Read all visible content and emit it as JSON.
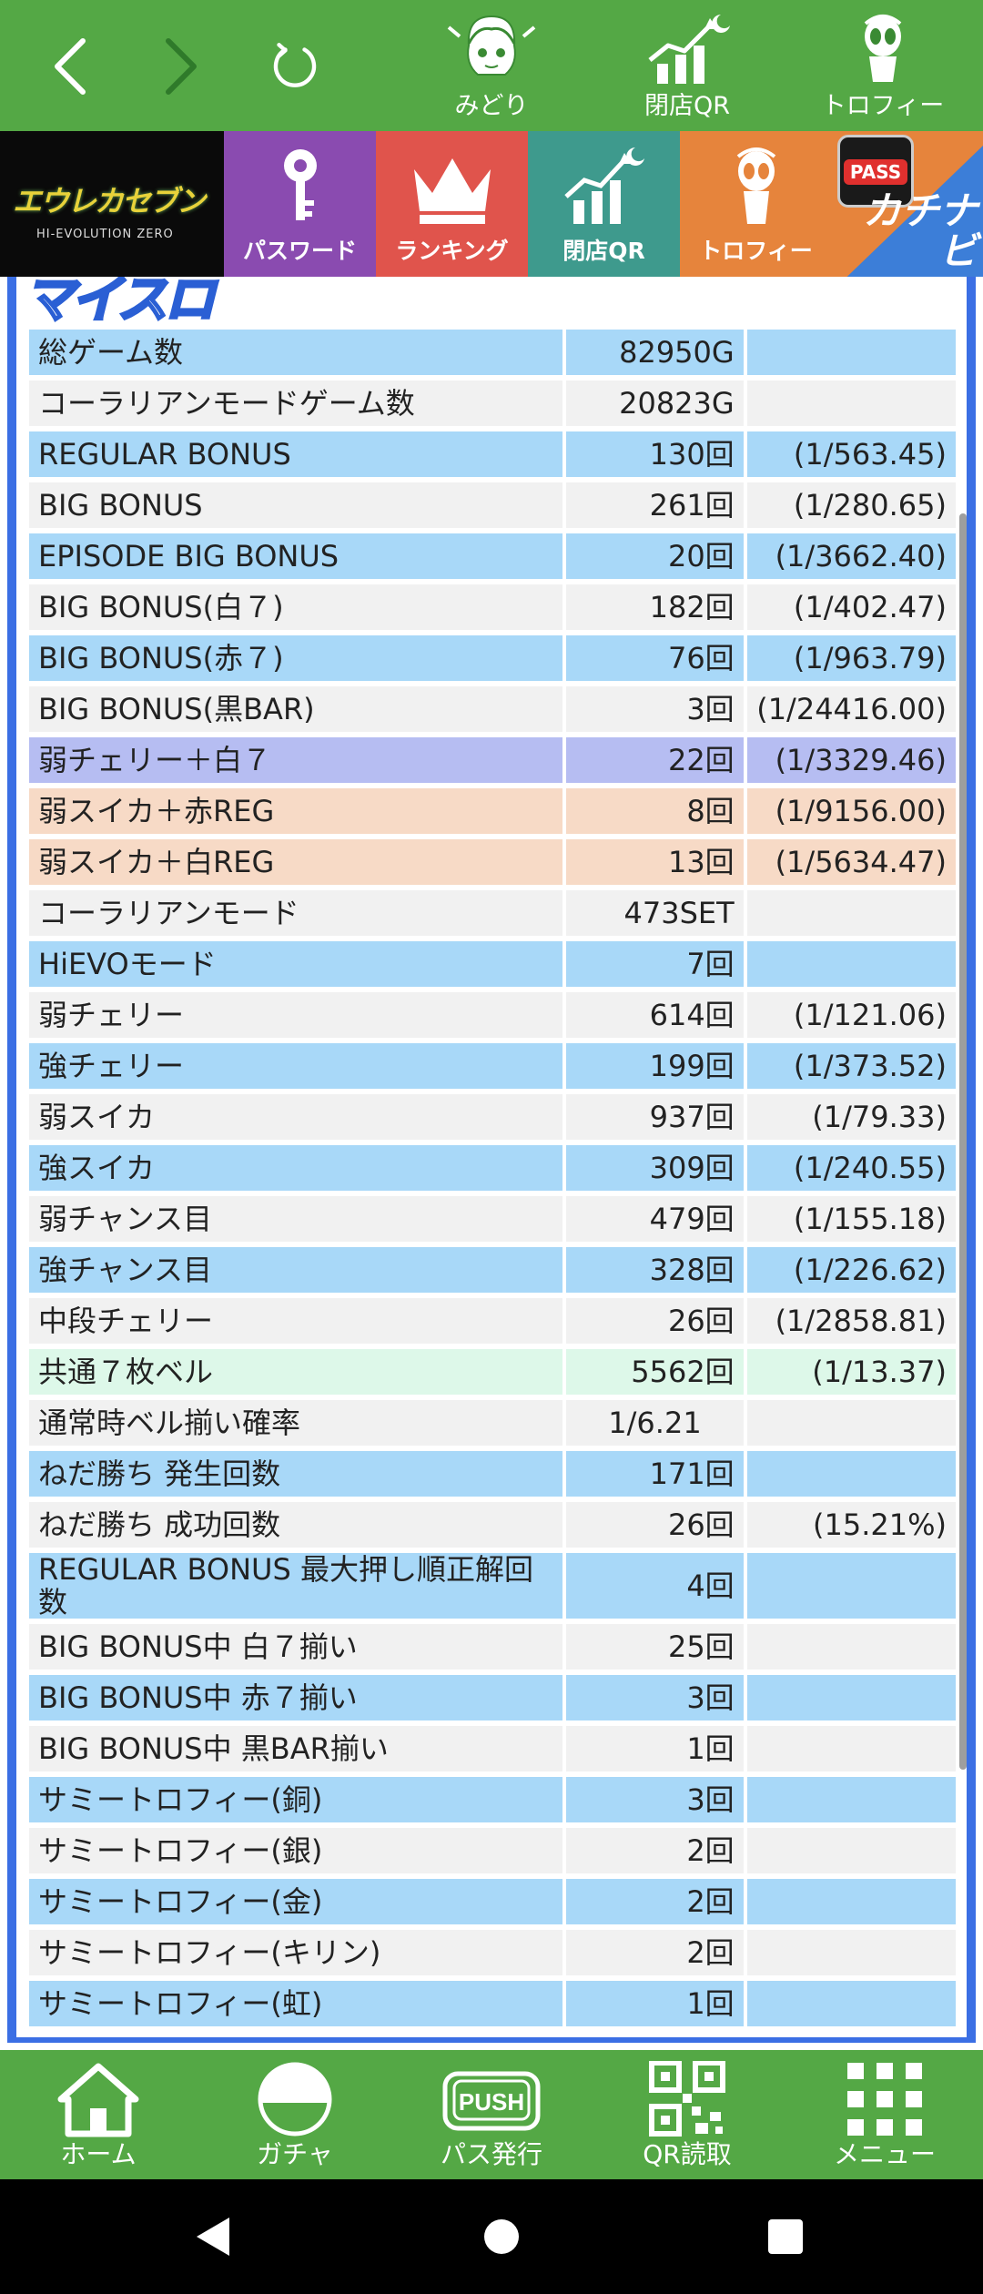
{
  "top_nav": {
    "midori_label": "みどり",
    "qr_label": "閉店QR",
    "trophy_label": "トロフィー"
  },
  "banner": {
    "logo_text": "エウレカセブン",
    "logo_sub": "HI-EVOLUTION ZERO",
    "tiles": {
      "password": "パスワード",
      "ranking": "ランキング",
      "closing_qr": "閉店QR",
      "trophy": "トロフィー",
      "pass_badge": "PASS",
      "kachinavi": "カチナビ"
    }
  },
  "content_header": "マイスロ",
  "stats": [
    {
      "label": "総ゲーム数",
      "value": "82950G",
      "ratio": "",
      "style": "blue"
    },
    {
      "label": "コーラリアンモードゲーム数",
      "value": "20823G",
      "ratio": "",
      "style": "gray"
    },
    {
      "label": "REGULAR BONUS",
      "value": "130回",
      "ratio": "(1/563.45)",
      "style": "blue"
    },
    {
      "label": "BIG BONUS",
      "value": "261回",
      "ratio": "(1/280.65)",
      "style": "gray"
    },
    {
      "label": "EPISODE BIG BONUS",
      "value": "20回",
      "ratio": "(1/3662.40)",
      "style": "blue"
    },
    {
      "label": "BIG BONUS(白７)",
      "value": "182回",
      "ratio": "(1/402.47)",
      "style": "gray"
    },
    {
      "label": "BIG BONUS(赤７)",
      "value": "76回",
      "ratio": "(1/963.79)",
      "style": "blue"
    },
    {
      "label": "BIG BONUS(黒BAR)",
      "value": "3回",
      "ratio": "(1/24416.00)",
      "style": "gray"
    },
    {
      "label": "弱チェリー＋白７",
      "value": "22回",
      "ratio": "(1/3329.46)",
      "style": "purple"
    },
    {
      "label": "弱スイカ＋赤REG",
      "value": "8回",
      "ratio": "(1/9156.00)",
      "style": "peach"
    },
    {
      "label": "弱スイカ＋白REG",
      "value": "13回",
      "ratio": "(1/5634.47)",
      "style": "peach"
    },
    {
      "label": "コーラリアンモード",
      "value": "473SET",
      "ratio": "",
      "style": "gray"
    },
    {
      "label": "HiEVOモード",
      "value": "7回",
      "ratio": "",
      "style": "blue"
    },
    {
      "label": "弱チェリー",
      "value": "614回",
      "ratio": "(1/121.06)",
      "style": "gray"
    },
    {
      "label": "強チェリー",
      "value": "199回",
      "ratio": "(1/373.52)",
      "style": "blue"
    },
    {
      "label": "弱スイカ",
      "value": "937回",
      "ratio": "(1/79.33)",
      "style": "gray"
    },
    {
      "label": "強スイカ",
      "value": "309回",
      "ratio": "(1/240.55)",
      "style": "blue"
    },
    {
      "label": "弱チャンス目",
      "value": "479回",
      "ratio": "(1/155.18)",
      "style": "gray"
    },
    {
      "label": "強チャンス目",
      "value": "328回",
      "ratio": "(1/226.62)",
      "style": "blue"
    },
    {
      "label": "中段チェリー",
      "value": "26回",
      "ratio": "(1/2858.81)",
      "style": "gray"
    },
    {
      "label": "共通７枚ベル",
      "value": "5562回",
      "ratio": "(1/13.37)",
      "style": "mint"
    },
    {
      "label": "通常時ベル揃い確率",
      "value": "1/6.21",
      "ratio": "",
      "style": "gray",
      "center": true
    },
    {
      "label": "ねだ勝ち 発生回数",
      "value": "171回",
      "ratio": "",
      "style": "blue"
    },
    {
      "label": "ねだ勝ち 成功回数",
      "value": "26回",
      "ratio": "(15.21%)",
      "style": "gray"
    },
    {
      "label": "REGULAR BONUS 最大押し順正解回数",
      "value": "4回",
      "ratio": "",
      "style": "blue",
      "tall": true
    },
    {
      "label": "BIG BONUS中 白７揃い",
      "value": "25回",
      "ratio": "",
      "style": "gray"
    },
    {
      "label": "BIG BONUS中 赤７揃い",
      "value": "3回",
      "ratio": "",
      "style": "blue"
    },
    {
      "label": "BIG BONUS中 黒BAR揃い",
      "value": "1回",
      "ratio": "",
      "style": "gray"
    },
    {
      "label": "サミートロフィー(銅)",
      "value": "3回",
      "ratio": "",
      "style": "blue"
    },
    {
      "label": "サミートロフィー(銀)",
      "value": "2回",
      "ratio": "",
      "style": "gray"
    },
    {
      "label": "サミートロフィー(金)",
      "value": "2回",
      "ratio": "",
      "style": "blue"
    },
    {
      "label": "サミートロフィー(キリン)",
      "value": "2回",
      "ratio": "",
      "style": "gray"
    },
    {
      "label": "サミートロフィー(虹)",
      "value": "1回",
      "ratio": "",
      "style": "blue"
    }
  ],
  "bottom_nav": {
    "home": "ホーム",
    "gacha": "ガチャ",
    "pass_issue": "パス発行",
    "push": "PUSH",
    "qr_read": "QR読取",
    "menu": "メニュー"
  },
  "colors": {
    "nav_green": "#54a845",
    "row_blue": "#a8d8f8",
    "row_gray": "#f1f1f1",
    "row_purple": "#b6bdf2",
    "row_peach": "#f7dac6",
    "row_mint": "#ddf8e9",
    "frame_blue": "#3b6fe4"
  }
}
